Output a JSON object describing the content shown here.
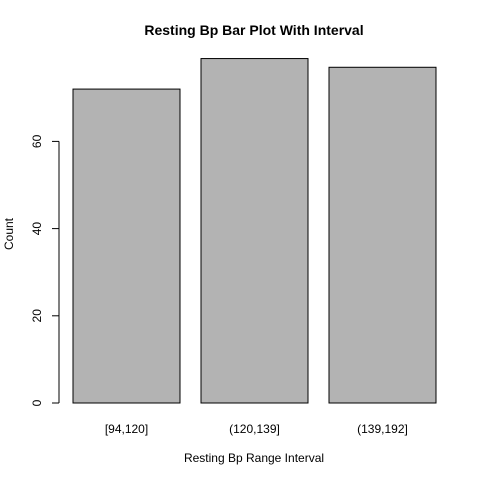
{
  "chart_data": {
    "type": "bar",
    "title": "Resting Bp Bar Plot With Interval",
    "xlabel": "Resting Bp Range Interval",
    "ylabel": "Count",
    "categories": [
      "[94,120]",
      "(120,139]",
      "(139,192]"
    ],
    "values": [
      72,
      79,
      77
    ],
    "ylim": [
      0,
      80
    ],
    "yticks": [
      0,
      20,
      40,
      60
    ],
    "grid": false,
    "legend": "none",
    "colors": {
      "bar_fill": "#b3b3b3",
      "bar_stroke": "#000000",
      "axis": "#000000",
      "text": "#000000"
    }
  }
}
